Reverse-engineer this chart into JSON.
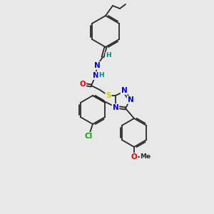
{
  "background_color": "#e8e8e8",
  "bond_color": "#2a2a2a",
  "atom_colors": {
    "N": "#0000ee",
    "O": "#ee0000",
    "S": "#cccc00",
    "Cl": "#00aa00",
    "H": "#008888",
    "C": "#2a2a2a"
  },
  "figsize": [
    3.0,
    3.0
  ],
  "dpi": 100
}
